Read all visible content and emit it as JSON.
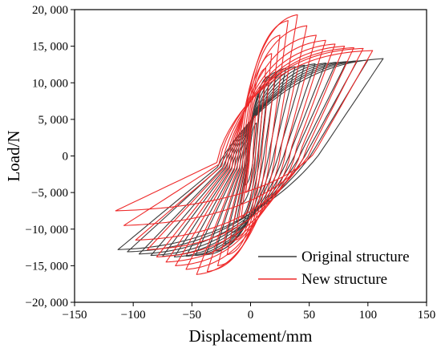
{
  "chart_data": {
    "type": "line",
    "title": "",
    "xlabel": "Displacement/mm",
    "ylabel": "Load/N",
    "xlim": [
      -150,
      150
    ],
    "ylim": [
      -20000,
      20000
    ],
    "x_ticks": [
      -150,
      -100,
      -50,
      0,
      50,
      100,
      150
    ],
    "y_ticks": [
      -20000,
      -15000,
      -10000,
      -5000,
      0,
      5000,
      10000,
      15000,
      20000
    ],
    "x_tick_labels": [
      "−150",
      "−100",
      "−50",
      "0",
      "50",
      "100",
      "150"
    ],
    "y_tick_labels": [
      "−20, 000",
      "−15, 000",
      "−10, 000",
      "−5, 000",
      "0",
      "5, 000",
      "10, 000",
      "15, 000",
      "20, 000"
    ],
    "grid": false,
    "legend_position": "bottom-right",
    "series": [
      {
        "name": "Original structure",
        "color": "#3a3a3a",
        "style": "hysteresis",
        "loops": [
          {
            "amp_pos": 5,
            "amp_neg": -5,
            "peak_pos": 4500,
            "peak_neg": -4000
          },
          {
            "amp_pos": 8,
            "amp_neg": -8,
            "peak_pos": 7000,
            "peak_neg": -6500
          },
          {
            "amp_pos": 12,
            "amp_neg": -12,
            "peak_pos": 9500,
            "peak_neg": -9000
          },
          {
            "amp_pos": 16,
            "amp_neg": -16,
            "peak_pos": 11000,
            "peak_neg": -10500
          },
          {
            "amp_pos": 22,
            "amp_neg": -22,
            "peak_pos": 11500,
            "peak_neg": -12000
          },
          {
            "amp_pos": 30,
            "amp_neg": -30,
            "peak_pos": 12000,
            "peak_neg": -13000
          },
          {
            "amp_pos": 38,
            "amp_neg": -38,
            "peak_pos": 12200,
            "peak_neg": -13500
          },
          {
            "amp_pos": 46,
            "amp_neg": -47,
            "peak_pos": 12400,
            "peak_neg": -13600
          },
          {
            "amp_pos": 55,
            "amp_neg": -55,
            "peak_pos": 12600,
            "peak_neg": -13700
          },
          {
            "amp_pos": 64,
            "amp_neg": -65,
            "peak_pos": 12700,
            "peak_neg": -13800
          },
          {
            "amp_pos": 73,
            "amp_neg": -75,
            "peak_pos": 12800,
            "peak_neg": -13700
          },
          {
            "amp_pos": 82,
            "amp_neg": -85,
            "peak_pos": 12900,
            "peak_neg": -13600
          },
          {
            "amp_pos": 91,
            "amp_neg": -95,
            "peak_pos": 13000,
            "peak_neg": -13400
          },
          {
            "amp_pos": 100,
            "amp_neg": -105,
            "peak_pos": 13100,
            "peak_neg": -13100
          },
          {
            "amp_pos": 113,
            "amp_neg": -113,
            "peak_pos": 13300,
            "peak_neg": -12800
          }
        ]
      },
      {
        "name": "New structure",
        "color": "#ee2a2a",
        "style": "hysteresis",
        "loops": [
          {
            "amp_pos": 4,
            "amp_neg": -4,
            "peak_pos": 5500,
            "peak_neg": -5000
          },
          {
            "amp_pos": 8,
            "amp_neg": -8,
            "peak_pos": 9000,
            "peak_neg": -8500
          },
          {
            "amp_pos": 13,
            "amp_neg": -13,
            "peak_pos": 12000,
            "peak_neg": -11500
          },
          {
            "amp_pos": 18,
            "amp_neg": -20,
            "peak_pos": 14000,
            "peak_neg": -13500
          },
          {
            "amp_pos": 25,
            "amp_neg": -28,
            "peak_pos": 16500,
            "peak_neg": -15000
          },
          {
            "amp_pos": 32,
            "amp_neg": -37,
            "peak_pos": 18500,
            "peak_neg": -15800
          },
          {
            "amp_pos": 40,
            "amp_neg": -46,
            "peak_pos": 19300,
            "peak_neg": -16200
          },
          {
            "amp_pos": 48,
            "amp_neg": -55,
            "peak_pos": 17800,
            "peak_neg": -15500
          },
          {
            "amp_pos": 56,
            "amp_neg": -64,
            "peak_pos": 16500,
            "peak_neg": -15000
          },
          {
            "amp_pos": 64,
            "amp_neg": -72,
            "peak_pos": 15800,
            "peak_neg": -14500
          },
          {
            "amp_pos": 72,
            "amp_neg": -80,
            "peak_pos": 15300,
            "peak_neg": -13800
          },
          {
            "amp_pos": 80,
            "amp_neg": -88,
            "peak_pos": 15000,
            "peak_neg": -12800
          },
          {
            "amp_pos": 88,
            "amp_neg": -98,
            "peak_pos": 14800,
            "peak_neg": -11500
          },
          {
            "amp_pos": 96,
            "amp_neg": -108,
            "peak_pos": 14700,
            "peak_neg": -9500
          },
          {
            "amp_pos": 104,
            "amp_neg": -115,
            "peak_pos": 14400,
            "peak_neg": -7500
          }
        ]
      }
    ]
  }
}
